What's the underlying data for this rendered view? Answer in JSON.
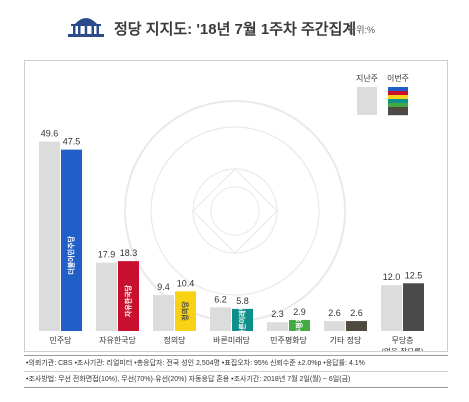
{
  "header": {
    "title": "정당 지지도: '18년 7월 1주차 주간집계",
    "unit": "단위:%"
  },
  "colors": {
    "prev_bar": "#dcdcdc",
    "title_text": "#3a3a3a",
    "party_colors": [
      "#1f5fc7",
      "#c8102e",
      "#f7d215",
      "#0f8f8a",
      "#44a845",
      "#4e4a3e",
      "#4a4a4a"
    ]
  },
  "chart_data": {
    "type": "bar",
    "categories": [
      "민주당",
      "자유한국당",
      "정의당",
      "바른미래당",
      "민주평화당",
      "기타 정당",
      "무당층"
    ],
    "category_sublabels": [
      "",
      "",
      "",
      "",
      "",
      "",
      "(없음·잘모름)"
    ],
    "series": [
      {
        "name": "지난주",
        "values": [
          49.6,
          17.9,
          9.4,
          6.2,
          2.3,
          2.6,
          12.0
        ]
      },
      {
        "name": "이번주",
        "values": [
          47.5,
          18.3,
          10.4,
          5.8,
          2.9,
          2.6,
          12.5
        ]
      }
    ],
    "value_labels": {
      "prev": [
        "49.6",
        "17.9",
        "9.4",
        "6.2",
        "2.3",
        "2.6",
        "12.0"
      ],
      "curr": [
        "47.5",
        "18.3",
        "10.4",
        "5.8",
        "2.9",
        "2.6",
        "12.5"
      ]
    },
    "bar_logo_text": [
      "더불어민주당",
      "자유한국당",
      "정의당",
      "바른미래당",
      "민주평화당",
      "",
      ""
    ],
    "legend": [
      "지난주",
      "이번주"
    ],
    "legend_position": "top-right",
    "ylim": [
      0,
      55
    ],
    "grid": false,
    "title": "정당 지지도: '18년 7월 1주차 주간집계"
  },
  "footnotes": {
    "line1": "•의뢰기관: CBS  •조사기관: 리얼미터  •총응답자: 전국 성인 2,504명  •표집오차: 95% 신뢰수준 ±2.0%p  •응답률: 4.1%",
    "line2": "•조사방법: 무선 전화면접(10%), 무선(70%)·유선(20%) 자동응답 혼용  •조사기간: 2018년 7월 2일(월) ~ 6일(금)"
  }
}
